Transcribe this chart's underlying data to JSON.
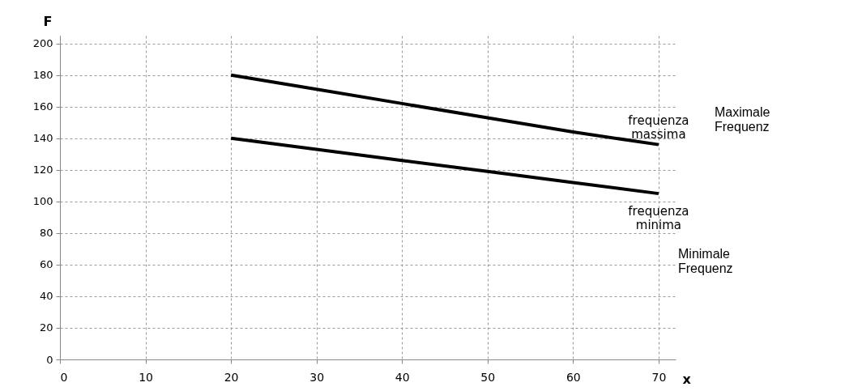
{
  "chart_data": {
    "type": "line",
    "xlabel": "x",
    "ylabel": "F",
    "x": [
      20,
      30,
      40,
      50,
      60,
      70
    ],
    "series": [
      {
        "color": "#000000",
        "values": [
          180,
          171,
          162,
          153,
          144,
          136
        ]
      },
      {
        "color": "#000000",
        "values": [
          140,
          133,
          126,
          119,
          112,
          105
        ]
      }
    ],
    "xlim": [
      0,
      72
    ],
    "ylim": [
      0,
      205
    ],
    "xticks": [
      0,
      10,
      20,
      30,
      40,
      50,
      60,
      70
    ],
    "yticks": [
      0,
      20,
      40,
      60,
      80,
      100,
      120,
      140,
      160,
      180,
      200
    ],
    "grid": true,
    "line_style": "solid",
    "marker": "none",
    "legend": false,
    "annotations": [
      {
        "text": "frequenza massima",
        "x": 70,
        "y": 136
      },
      {
        "text": "frequenza minima",
        "x": 70,
        "y": 105
      },
      "Maximale Frequenz",
      "Minimale Frequenz"
    ]
  }
}
